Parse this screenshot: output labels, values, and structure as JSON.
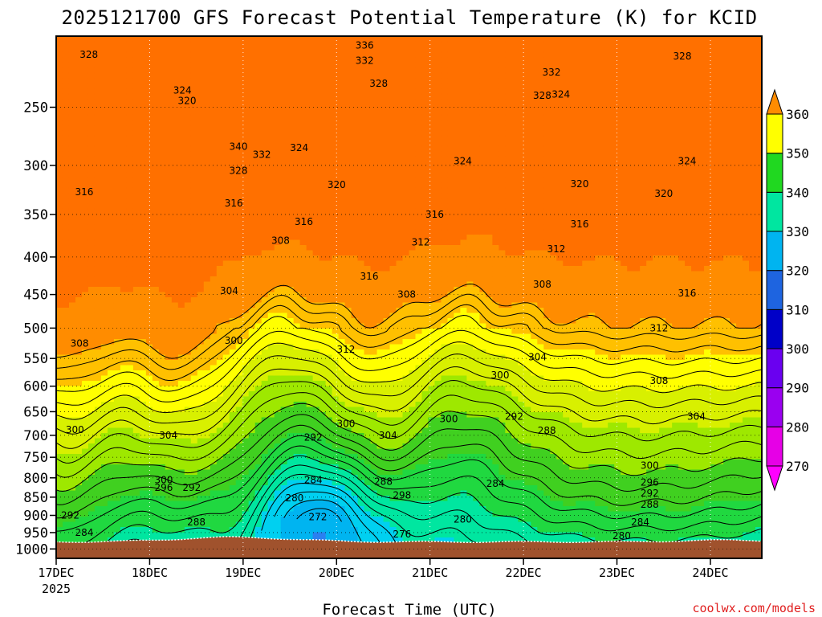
{
  "chart_data": {
    "type": "heatmap",
    "title": "2025121700 GFS Forecast Potential Temperature (K) for KCID",
    "xlabel": "Forecast Time (UTC)",
    "ylabel": "",
    "credit": "coolwx.com/models",
    "x_tick_labels": [
      "17DEC",
      "18DEC",
      "19DEC",
      "20DEC",
      "21DEC",
      "22DEC",
      "23DEC",
      "24DEC"
    ],
    "x_year_label": "2025",
    "x_range_days": [
      0,
      7.55
    ],
    "y_tick_labels": [
      "250",
      "300",
      "350",
      "400",
      "450",
      "500",
      "550",
      "600",
      "650",
      "700",
      "750",
      "800",
      "850",
      "900",
      "950",
      "1000"
    ],
    "y_range_hpa": [
      200,
      1030
    ],
    "grid": true,
    "colorbar": {
      "levels": [
        270,
        280,
        290,
        300,
        310,
        320,
        330,
        340,
        350,
        360
      ],
      "labels": [
        "270",
        "280",
        "290",
        "300",
        "310",
        "320",
        "330",
        "340",
        "350",
        "360"
      ],
      "colors": [
        "#e600e6",
        "#b000f0",
        "#7200f0",
        "#2a00e8",
        "#0000c8",
        "#1e64e0",
        "#00b4f0",
        "#00e6a0",
        "#20d820",
        "#9ee800",
        "#ffff00",
        "#ffc000",
        "#ff8c00"
      ]
    },
    "terrain_color": "#a0522d",
    "contour_labels": [
      {
        "t": 0.35,
        "p": 212,
        "v": "328"
      },
      {
        "t": 1.35,
        "p": 237,
        "v": "324"
      },
      {
        "t": 1.4,
        "p": 245,
        "v": "320"
      },
      {
        "t": 1.95,
        "p": 283,
        "v": "340"
      },
      {
        "t": 2.2,
        "p": 290,
        "v": "332"
      },
      {
        "t": 2.6,
        "p": 284,
        "v": "324"
      },
      {
        "t": 1.95,
        "p": 305,
        "v": "328"
      },
      {
        "t": 3.3,
        "p": 206,
        "v": "336"
      },
      {
        "t": 3.3,
        "p": 216,
        "v": "332"
      },
      {
        "t": 3.45,
        "p": 232,
        "v": "328"
      },
      {
        "t": 4.35,
        "p": 296,
        "v": "324"
      },
      {
        "t": 5.3,
        "p": 224,
        "v": "332"
      },
      {
        "t": 5.4,
        "p": 240,
        "v": "324"
      },
      {
        "t": 5.2,
        "p": 241,
        "v": "328"
      },
      {
        "t": 6.7,
        "p": 213,
        "v": "328"
      },
      {
        "t": 6.75,
        "p": 296,
        "v": "324"
      },
      {
        "t": 0.3,
        "p": 326,
        "v": "316"
      },
      {
        "t": 1.9,
        "p": 338,
        "v": "316"
      },
      {
        "t": 2.65,
        "p": 358,
        "v": "316"
      },
      {
        "t": 3.0,
        "p": 319,
        "v": "320"
      },
      {
        "t": 4.05,
        "p": 350,
        "v": "316"
      },
      {
        "t": 5.6,
        "p": 318,
        "v": "320"
      },
      {
        "t": 6.5,
        "p": 328,
        "v": "320"
      },
      {
        "t": 5.6,
        "p": 361,
        "v": "316"
      },
      {
        "t": 2.4,
        "p": 380,
        "v": "308"
      },
      {
        "t": 3.9,
        "p": 382,
        "v": "312"
      },
      {
        "t": 5.35,
        "p": 390,
        "v": "312"
      },
      {
        "t": 3.35,
        "p": 425,
        "v": "316"
      },
      {
        "t": 1.85,
        "p": 445,
        "v": "304"
      },
      {
        "t": 3.75,
        "p": 450,
        "v": "308"
      },
      {
        "t": 5.2,
        "p": 436,
        "v": "308"
      },
      {
        "t": 6.75,
        "p": 448,
        "v": "316"
      },
      {
        "t": 0.25,
        "p": 525,
        "v": "308"
      },
      {
        "t": 1.9,
        "p": 520,
        "v": "300"
      },
      {
        "t": 3.1,
        "p": 535,
        "v": "312"
      },
      {
        "t": 5.15,
        "p": 548,
        "v": "304"
      },
      {
        "t": 6.45,
        "p": 500,
        "v": "312"
      },
      {
        "t": 4.75,
        "p": 580,
        "v": "300"
      },
      {
        "t": 6.45,
        "p": 590,
        "v": "308"
      },
      {
        "t": 0.2,
        "p": 688,
        "v": "300"
      },
      {
        "t": 1.2,
        "p": 700,
        "v": "304"
      },
      {
        "t": 3.1,
        "p": 675,
        "v": "300"
      },
      {
        "t": 2.75,
        "p": 705,
        "v": "292"
      },
      {
        "t": 3.55,
        "p": 700,
        "v": "304"
      },
      {
        "t": 4.2,
        "p": 665,
        "v": "300"
      },
      {
        "t": 4.9,
        "p": 660,
        "v": "292"
      },
      {
        "t": 5.25,
        "p": 690,
        "v": "288"
      },
      {
        "t": 6.85,
        "p": 660,
        "v": "304"
      },
      {
        "t": 1.15,
        "p": 805,
        "v": "300"
      },
      {
        "t": 1.15,
        "p": 825,
        "v": "296"
      },
      {
        "t": 1.45,
        "p": 825,
        "v": "292"
      },
      {
        "t": 2.75,
        "p": 805,
        "v": "284"
      },
      {
        "t": 3.5,
        "p": 810,
        "v": "288"
      },
      {
        "t": 4.7,
        "p": 815,
        "v": "284"
      },
      {
        "t": 3.7,
        "p": 845,
        "v": "298"
      },
      {
        "t": 6.35,
        "p": 770,
        "v": "300"
      },
      {
        "t": 6.35,
        "p": 812,
        "v": "296"
      },
      {
        "t": 6.35,
        "p": 840,
        "v": "292"
      },
      {
        "t": 6.35,
        "p": 870,
        "v": "288"
      },
      {
        "t": 0.15,
        "p": 900,
        "v": "292"
      },
      {
        "t": 2.55,
        "p": 852,
        "v": "280"
      },
      {
        "t": 2.8,
        "p": 905,
        "v": "272"
      },
      {
        "t": 1.5,
        "p": 920,
        "v": "288"
      },
      {
        "t": 0.3,
        "p": 950,
        "v": "284"
      },
      {
        "t": 3.7,
        "p": 955,
        "v": "276"
      },
      {
        "t": 4.35,
        "p": 912,
        "v": "280"
      },
      {
        "t": 6.25,
        "p": 920,
        "v": "284"
      },
      {
        "t": 6.05,
        "p": 960,
        "v": "280"
      }
    ]
  }
}
